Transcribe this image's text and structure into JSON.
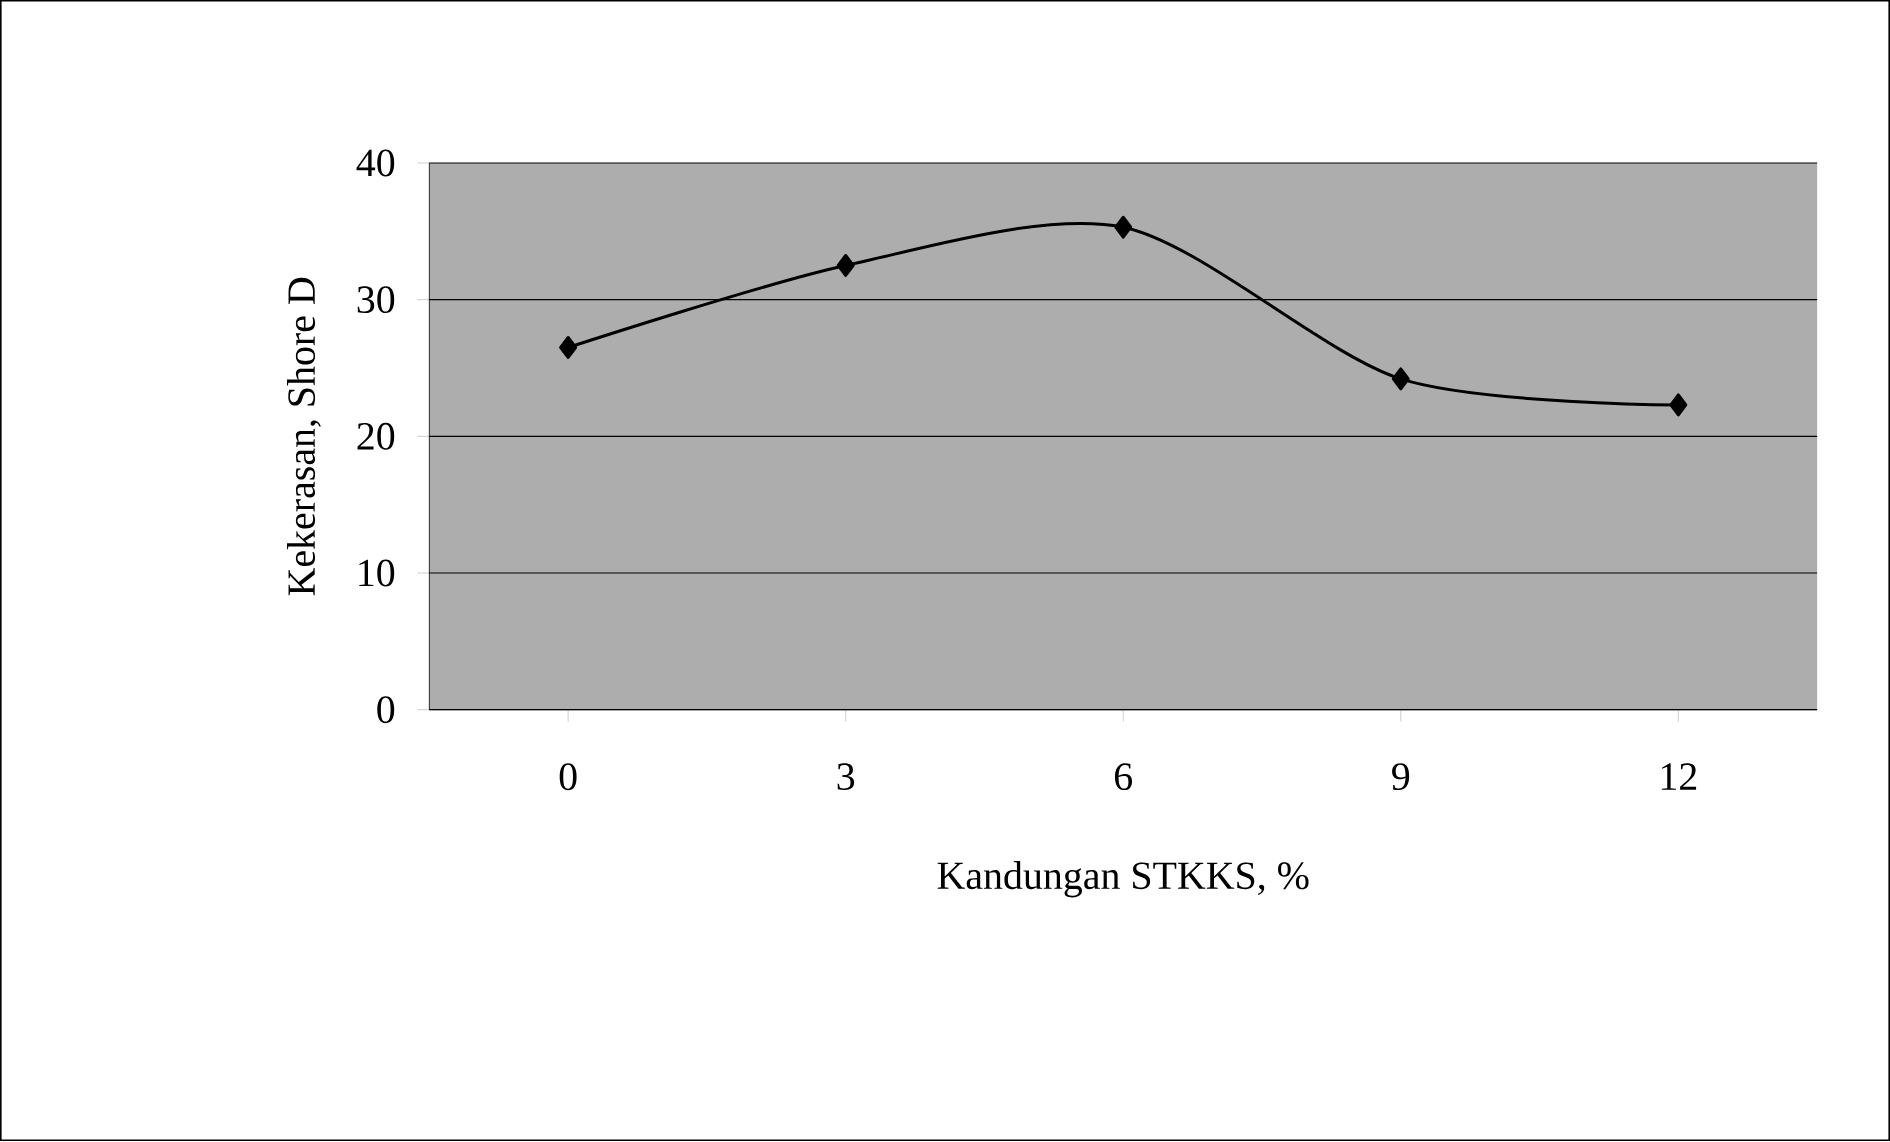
{
  "chart_data": {
    "type": "line",
    "xlabel": "Kandungan STKKS, %",
    "ylabel": "Kekerasan, Shore D",
    "categories": [
      "0",
      "3",
      "6",
      "9",
      "12"
    ],
    "series": [
      {
        "color": "#000000",
        "values": [
          26.5,
          32.5,
          35.3,
          24.2,
          22.3
        ]
      }
    ],
    "ylim": [
      0,
      40
    ],
    "yticks": [
      0,
      10,
      20,
      30,
      40
    ],
    "grid": "y",
    "marker": "diamond",
    "line_style": "solid"
  }
}
